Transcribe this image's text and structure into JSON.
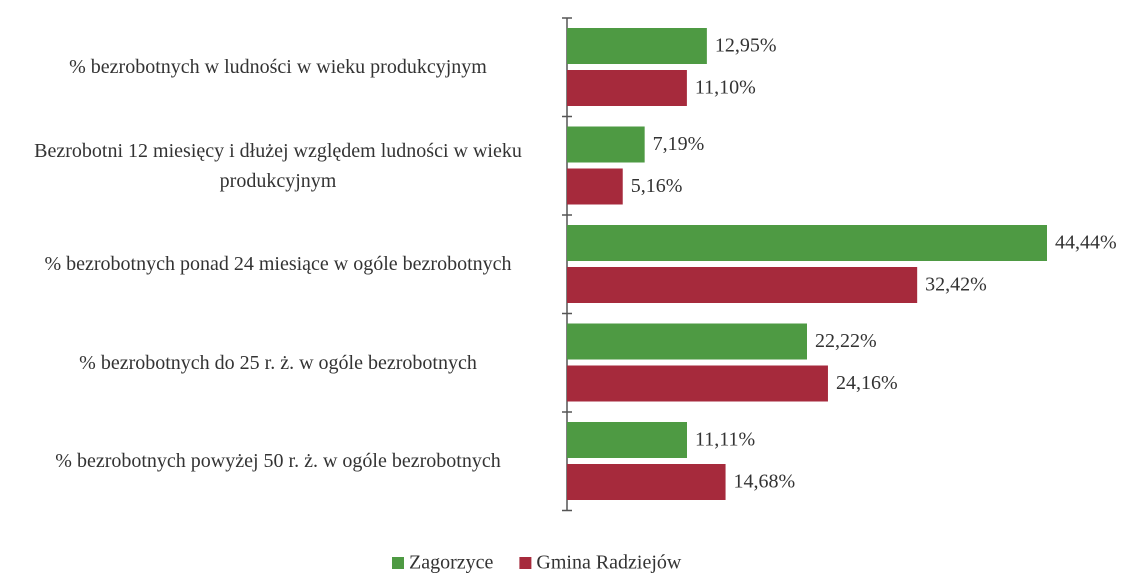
{
  "chart_data": {
    "type": "barh",
    "categories": [
      "% bezrobotnych w ludności w wieku produkcyjnym",
      "Bezrobotni 12 miesięcy i dłużej względem ludności w wieku produkcyjnym",
      "% bezrobotnych ponad 24 miesiące w ogóle bezrobotnych",
      "% bezrobotnych do 25 r. ż. w ogóle bezrobotnych",
      "% bezrobotnych powyżej 50 r. ż. w ogóle bezrobotnych"
    ],
    "series": [
      {
        "name": "Zagorzyce",
        "color": "#4e9a43",
        "values": [
          12.95,
          7.19,
          44.44,
          22.22,
          11.11
        ],
        "value_labels": [
          "12,95%",
          "7,19%",
          "44,44%",
          "22,22%",
          "11,11%"
        ]
      },
      {
        "name": "Gmina Radziejów",
        "color": "#a62a3c",
        "values": [
          11.1,
          5.16,
          32.42,
          24.16,
          14.68
        ],
        "value_labels": [
          "11,10%",
          "5,16%",
          "32,42%",
          "24,16%",
          "14,68%"
        ]
      }
    ],
    "legend": "bottom"
  }
}
